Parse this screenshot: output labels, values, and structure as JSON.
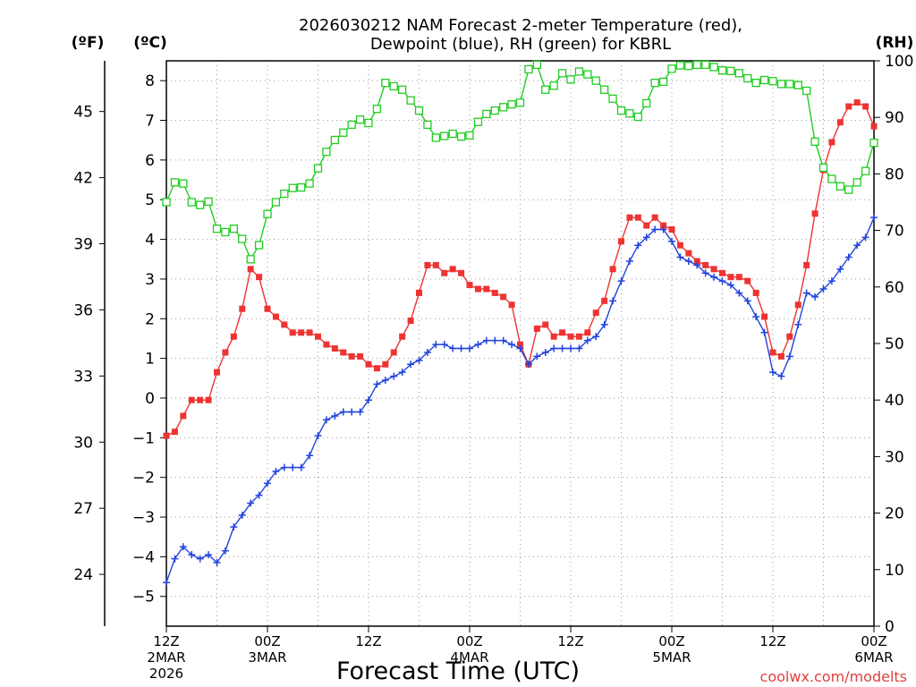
{
  "chart_data": {
    "type": "line",
    "title_line1": "2026030212 NAM Forecast 2-meter Temperature (red),",
    "title_line2": "Dewpoint (blue), RH (green) for KBRL",
    "xlabel": "Forecast Time (UTC)",
    "watermark": "coolwx.com/modelts",
    "left_outer_axis": {
      "title": "(ºF)",
      "ticks": [
        24,
        27,
        30,
        33,
        36,
        39,
        42,
        45
      ]
    },
    "left_axis": {
      "title": "(ºC)",
      "range": [
        -5.75,
        8.5
      ],
      "ticks": [
        -5,
        -4,
        -3,
        -2,
        -1,
        0,
        1,
        2,
        3,
        4,
        5,
        6,
        7,
        8
      ]
    },
    "right_axis": {
      "title": "(RH)",
      "range": [
        0,
        100
      ],
      "ticks": [
        0,
        10,
        20,
        30,
        40,
        50,
        60,
        70,
        80,
        90,
        100
      ]
    },
    "x_range": [
      0,
      84
    ],
    "x_ticks": [
      {
        "hour": 0,
        "lines": [
          "12Z",
          "2MAR",
          "2026"
        ]
      },
      {
        "hour": 12,
        "lines": [
          "00Z",
          "3MAR"
        ]
      },
      {
        "hour": 24,
        "lines": [
          "12Z"
        ]
      },
      {
        "hour": 36,
        "lines": [
          "00Z",
          "4MAR"
        ]
      },
      {
        "hour": 48,
        "lines": [
          "12Z"
        ]
      },
      {
        "hour": 60,
        "lines": [
          "00Z",
          "5MAR"
        ]
      },
      {
        "hour": 72,
        "lines": [
          "12Z"
        ]
      },
      {
        "hour": 84,
        "lines": [
          "00Z",
          "6MAR"
        ]
      }
    ],
    "grid": true,
    "x_hours": [
      0,
      1,
      2,
      3,
      4,
      5,
      6,
      7,
      8,
      9,
      10,
      11,
      12,
      13,
      14,
      15,
      16,
      17,
      18,
      19,
      20,
      21,
      22,
      23,
      24,
      25,
      26,
      27,
      28,
      29,
      30,
      31,
      32,
      33,
      34,
      35,
      36,
      37,
      38,
      39,
      40,
      41,
      42,
      43,
      44,
      45,
      46,
      47,
      48,
      49,
      50,
      51,
      52,
      53,
      54,
      55,
      56,
      57,
      58,
      59,
      60,
      61,
      62,
      63,
      64,
      65,
      66,
      67,
      68,
      69,
      70,
      71,
      72,
      73,
      74,
      75,
      76,
      77,
      78,
      79,
      80,
      81,
      82,
      83,
      84
    ],
    "series": [
      {
        "name": "Temperature",
        "axis": "left",
        "color": "#ee3333",
        "marker": "filled-square",
        "values": [
          -0.95,
          -0.85,
          -0.45,
          -0.05,
          -0.05,
          -0.05,
          0.65,
          1.15,
          1.55,
          2.25,
          3.25,
          3.05,
          2.25,
          2.05,
          1.85,
          1.65,
          1.65,
          1.65,
          1.55,
          1.35,
          1.25,
          1.15,
          1.05,
          1.05,
          0.85,
          0.75,
          0.85,
          1.15,
          1.55,
          1.95,
          2.65,
          3.35,
          3.35,
          3.15,
          3.25,
          3.15,
          2.85,
          2.75,
          2.75,
          2.65,
          2.55,
          2.35,
          1.35,
          0.85,
          1.75,
          1.85,
          1.55,
          1.65,
          1.55,
          1.55,
          1.65,
          2.15,
          2.45,
          3.25,
          3.95,
          4.55,
          4.55,
          4.35,
          4.55,
          4.35,
          4.25,
          3.85,
          3.65,
          3.45,
          3.35,
          3.25,
          3.15,
          3.05,
          3.05,
          2.95,
          2.65,
          2.05,
          1.15,
          1.05,
          1.55,
          2.35,
          3.35,
          4.65,
          5.75,
          6.45,
          6.95,
          7.35,
          7.45,
          7.35,
          6.85
        ]
      },
      {
        "name": "Dewpoint",
        "axis": "left",
        "color": "#2244dd",
        "marker": "plus",
        "values": [
          -4.65,
          -4.05,
          -3.75,
          -3.95,
          -4.05,
          -3.95,
          -4.15,
          -3.85,
          -3.25,
          -2.95,
          -2.65,
          -2.45,
          -2.15,
          -1.85,
          -1.75,
          -1.75,
          -1.75,
          -1.45,
          -0.95,
          -0.55,
          -0.45,
          -0.35,
          -0.35,
          -0.35,
          -0.05,
          0.35,
          0.45,
          0.55,
          0.65,
          0.85,
          0.95,
          1.15,
          1.35,
          1.35,
          1.25,
          1.25,
          1.25,
          1.35,
          1.45,
          1.45,
          1.45,
          1.35,
          1.25,
          0.85,
          1.05,
          1.15,
          1.25,
          1.25,
          1.25,
          1.25,
          1.45,
          1.55,
          1.85,
          2.45,
          2.95,
          3.45,
          3.85,
          4.05,
          4.25,
          4.25,
          3.95,
          3.55,
          3.45,
          3.35,
          3.15,
          3.05,
          2.95,
          2.85,
          2.65,
          2.45,
          2.05,
          1.65,
          0.65,
          0.55,
          1.05,
          1.85,
          2.65,
          2.55,
          2.75,
          2.95,
          3.25,
          3.55,
          3.85,
          4.05,
          4.55
        ]
      },
      {
        "name": "RH",
        "axis": "right",
        "color": "#22cc22",
        "marker": "open-square",
        "values": [
          75.0,
          78.5,
          78.3,
          75.0,
          74.5,
          75.1,
          70.3,
          69.7,
          70.3,
          68.5,
          64.9,
          67.4,
          72.9,
          75.0,
          76.5,
          77.5,
          77.6,
          78.3,
          81.0,
          83.9,
          86.0,
          87.3,
          88.7,
          89.6,
          89.0,
          91.5,
          96.1,
          95.5,
          94.9,
          93.0,
          91.2,
          88.7,
          86.4,
          86.7,
          87.1,
          86.6,
          86.8,
          89.2,
          90.6,
          91.2,
          91.8,
          92.3,
          92.6,
          98.5,
          99.3,
          94.9,
          95.6,
          97.8,
          96.7,
          98.1,
          97.6,
          96.5,
          94.9,
          93.3,
          91.2,
          90.7,
          90.1,
          92.5,
          96.1,
          96.3,
          98.6,
          99.2,
          99.1,
          99.3,
          99.3,
          98.9,
          98.3,
          98.2,
          97.8,
          96.9,
          96.1,
          96.6,
          96.4,
          95.9,
          95.9,
          95.7,
          94.7,
          85.7,
          81.1,
          79.1,
          77.8,
          77.2,
          78.5,
          80.5,
          85.5
        ]
      }
    ]
  }
}
